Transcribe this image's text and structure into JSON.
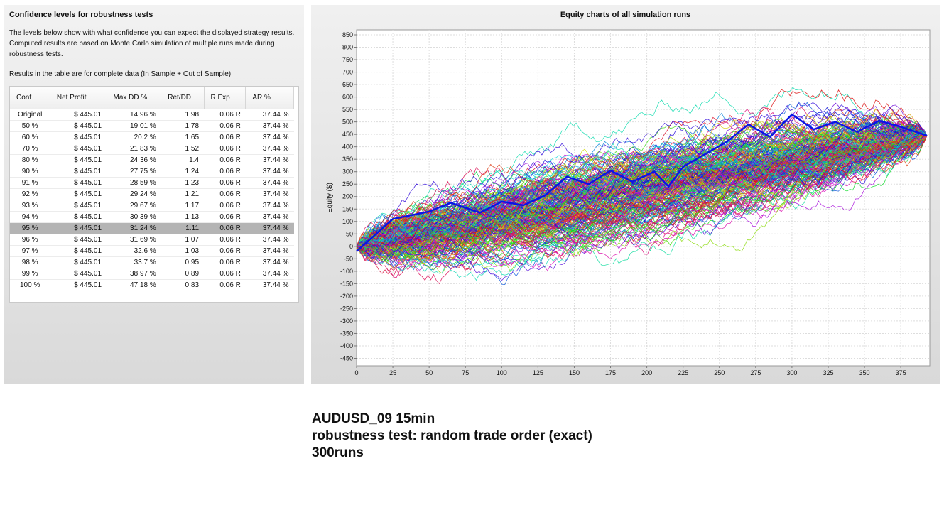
{
  "left_panel": {
    "title": "Confidence levels for robustness tests",
    "description": "The levels below show with what confidence you can expect the displayed strategy results. Computed results are based on Monte Carlo simulation of multiple runs made during robustness tests.",
    "note": "Results in the table are for complete data (In Sample + Out of Sample).",
    "table": {
      "headers": [
        "Conf",
        "Net Profit",
        "Max DD %",
        "Ret/DD",
        "R Exp",
        "AR %"
      ],
      "selected_row": "95 %",
      "rows": [
        [
          "Original",
          "$ 445.01",
          "14.96 %",
          "1.98",
          "0.06 R",
          "37.44 %"
        ],
        [
          "50 %",
          "$ 445.01",
          "19.01 %",
          "1.78",
          "0.06 R",
          "37.44 %"
        ],
        [
          "60 %",
          "$ 445.01",
          "20.2 %",
          "1.65",
          "0.06 R",
          "37.44 %"
        ],
        [
          "70 %",
          "$ 445.01",
          "21.83 %",
          "1.52",
          "0.06 R",
          "37.44 %"
        ],
        [
          "80 %",
          "$ 445.01",
          "24.36 %",
          "1.4",
          "0.06 R",
          "37.44 %"
        ],
        [
          "90 %",
          "$ 445.01",
          "27.75 %",
          "1.24",
          "0.06 R",
          "37.44 %"
        ],
        [
          "91 %",
          "$ 445.01",
          "28.59 %",
          "1.23",
          "0.06 R",
          "37.44 %"
        ],
        [
          "92 %",
          "$ 445.01",
          "29.24 %",
          "1.21",
          "0.06 R",
          "37.44 %"
        ],
        [
          "93 %",
          "$ 445.01",
          "29.67 %",
          "1.17",
          "0.06 R",
          "37.44 %"
        ],
        [
          "94 %",
          "$ 445.01",
          "30.39 %",
          "1.13",
          "0.06 R",
          "37.44 %"
        ],
        [
          "95 %",
          "$ 445.01",
          "31.24 %",
          "1.11",
          "0.06 R",
          "37.44 %"
        ],
        [
          "96 %",
          "$ 445.01",
          "31.69 %",
          "1.07",
          "0.06 R",
          "37.44 %"
        ],
        [
          "97 %",
          "$ 445.01",
          "32.6 %",
          "1.03",
          "0.06 R",
          "37.44 %"
        ],
        [
          "98 %",
          "$ 445.01",
          "33.7 %",
          "0.95",
          "0.06 R",
          "37.44 %"
        ],
        [
          "99 %",
          "$ 445.01",
          "38.97 %",
          "0.89",
          "0.06 R",
          "37.44 %"
        ],
        [
          "100 %",
          "$ 445.01",
          "47.18 %",
          "0.83",
          "0.06 R",
          "37.44 %"
        ]
      ]
    }
  },
  "chart_data": {
    "type": "line",
    "title": "Equity charts of all simulation runs",
    "ylabel": "Equity ($)",
    "xlabel": "",
    "xlim": [
      0,
      395
    ],
    "ylim": [
      -480,
      870
    ],
    "x_ticks": [
      0,
      25,
      50,
      75,
      100,
      125,
      150,
      175,
      200,
      225,
      250,
      275,
      300,
      325,
      350,
      375
    ],
    "y_ticks": [
      -450,
      -400,
      -350,
      -300,
      -250,
      -200,
      -150,
      -100,
      -50,
      0,
      50,
      100,
      150,
      200,
      250,
      300,
      350,
      400,
      450,
      500,
      550,
      600,
      650,
      700,
      750,
      800,
      850
    ],
    "grid": true,
    "simulation_runs": 300,
    "start_value": 0,
    "final_value": 445.01,
    "highlight_color": "#0a14e6",
    "highlight_series": [
      [
        0,
        -20
      ],
      [
        25,
        110
      ],
      [
        50,
        140
      ],
      [
        65,
        175
      ],
      [
        85,
        135
      ],
      [
        100,
        180
      ],
      [
        115,
        165
      ],
      [
        130,
        205
      ],
      [
        145,
        280
      ],
      [
        160,
        250
      ],
      [
        175,
        305
      ],
      [
        190,
        260
      ],
      [
        205,
        300
      ],
      [
        215,
        240
      ],
      [
        225,
        320
      ],
      [
        240,
        370
      ],
      [
        255,
        420
      ],
      [
        270,
        490
      ],
      [
        285,
        440
      ],
      [
        300,
        530
      ],
      [
        315,
        470
      ],
      [
        330,
        500
      ],
      [
        345,
        460
      ],
      [
        360,
        505
      ],
      [
        375,
        480
      ],
      [
        393,
        445
      ]
    ]
  },
  "caption": {
    "line1": "AUDUSD_09 15min",
    "line2": "robustness test: random trade order (exact)",
    "line3": "300runs"
  }
}
